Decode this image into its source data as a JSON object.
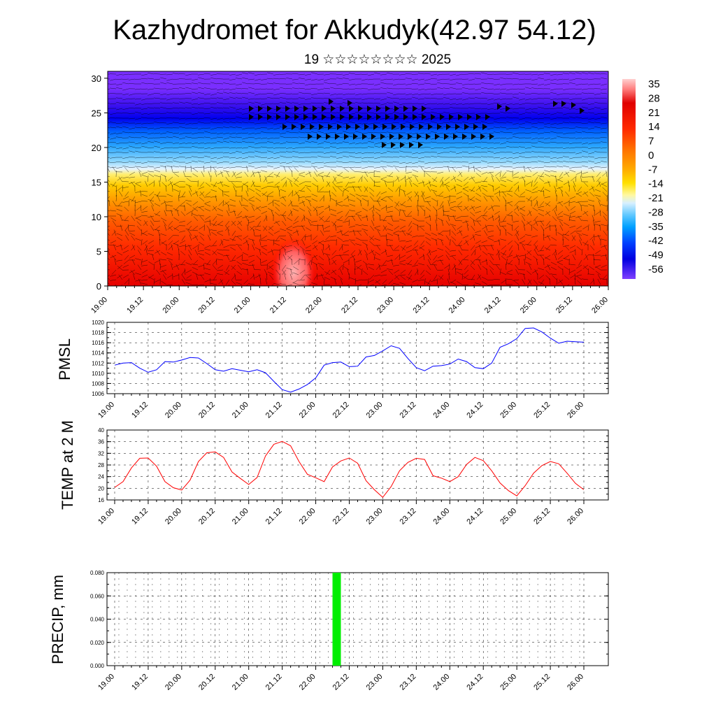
{
  "title": "Kazhydromet for Akkudyk(42.97 54.12)",
  "subtitle": "19 ☆☆☆☆☆☆☆☆ 2025",
  "colors": {
    "pmsl_line": "#0000ff",
    "temp_line": "#ff0000",
    "precip_bar": "#00ee00",
    "axis": "#000000",
    "grid": "#000000"
  },
  "chart_data": [
    {
      "type": "heatmap",
      "name": "upper-air-cross-section",
      "xlim": [
        0,
        7
      ],
      "ylim": [
        0,
        31
      ],
      "y_ticks": [
        0,
        5,
        10,
        15,
        20,
        25,
        30
      ],
      "x_tick_labels": [
        "19.00",
        "19.12",
        "20.00",
        "20.12",
        "21.00",
        "21.12",
        "22.00",
        "22.12",
        "23.00",
        "23.12",
        "24.00",
        "24.12",
        "25.00",
        "25.12",
        "26.00"
      ],
      "colorbar": {
        "labels": [
          "35",
          "28",
          "21",
          "14",
          "7",
          "0",
          "-7",
          "-14",
          "-21",
          "-28",
          "-35",
          "-42",
          "-49",
          "-56"
        ],
        "range": [
          -60,
          40
        ]
      },
      "overlay": "wind barbs"
    },
    {
      "type": "line",
      "name": "pmsl",
      "ylabel": "PMSL",
      "ylim": [
        1006,
        1020
      ],
      "y_ticks": [
        1006,
        1008,
        1010,
        1012,
        1014,
        1016,
        1018,
        1020
      ],
      "x_tick_labels": [
        "19.00",
        "19.12",
        "20.00",
        "20.12",
        "21.00",
        "21.12",
        "22.00",
        "22.12",
        "23.00",
        "23.12",
        "24.00",
        "24.12",
        "25.00",
        "25.12",
        "26.00"
      ],
      "x": [
        0,
        0.125,
        0.25,
        0.375,
        0.5,
        0.625,
        0.75,
        0.875,
        1,
        1.125,
        1.25,
        1.375,
        1.5,
        1.625,
        1.75,
        1.875,
        2,
        2.125,
        2.25,
        2.375,
        2.5,
        2.625,
        2.75,
        2.875,
        3,
        3.125,
        3.25,
        3.375,
        3.5,
        3.625,
        3.75,
        3.875,
        4,
        4.125,
        4.25,
        4.375,
        4.5,
        4.625,
        4.75,
        4.875,
        5,
        5.125,
        5.25,
        5.375,
        5.5,
        5.625,
        5.75,
        5.875,
        6,
        6.125,
        6.25,
        6.375,
        6.5,
        6.625,
        6.75,
        6.875,
        7
      ],
      "values": [
        1011.6,
        1012.0,
        1012.1,
        1011.0,
        1010.2,
        1010.7,
        1012.3,
        1012.2,
        1012.6,
        1013.1,
        1013.0,
        1011.9,
        1010.7,
        1010.4,
        1010.9,
        1010.6,
        1010.3,
        1010.7,
        1010.1,
        1008.4,
        1006.8,
        1006.3,
        1006.9,
        1007.8,
        1009.1,
        1011.6,
        1012.1,
        1012.2,
        1011.3,
        1011.4,
        1013.2,
        1013.5,
        1014.4,
        1015.4,
        1014.9,
        1012.9,
        1011.1,
        1010.5,
        1011.4,
        1011.5,
        1011.8,
        1012.8,
        1012.3,
        1011.1,
        1010.9,
        1012.0,
        1015.1,
        1015.8,
        1016.8,
        1018.8,
        1018.9,
        1018.1,
        1016.9,
        1015.9,
        1016.3,
        1016.2,
        1016.1
      ]
    },
    {
      "type": "line",
      "name": "temp2m",
      "ylabel": "TEMP at 2 M",
      "ylim": [
        16,
        40
      ],
      "y_ticks": [
        16,
        20,
        24,
        28,
        32,
        36,
        40
      ],
      "x_tick_labels": [
        "19.00",
        "19.12",
        "20.00",
        "20.12",
        "21.00",
        "21.12",
        "22.00",
        "22.12",
        "23.00",
        "23.12",
        "24.00",
        "24.12",
        "25.00",
        "25.12",
        "26.00"
      ],
      "x": [
        0,
        0.125,
        0.25,
        0.375,
        0.5,
        0.625,
        0.75,
        0.875,
        1,
        1.125,
        1.25,
        1.375,
        1.5,
        1.625,
        1.75,
        1.875,
        2,
        2.125,
        2.25,
        2.375,
        2.5,
        2.625,
        2.75,
        2.875,
        3,
        3.125,
        3.25,
        3.375,
        3.5,
        3.625,
        3.75,
        3.875,
        4,
        4.125,
        4.25,
        4.375,
        4.5,
        4.625,
        4.75,
        4.875,
        5,
        5.125,
        5.25,
        5.375,
        5.5,
        5.625,
        5.75,
        5.875,
        6,
        6.125,
        6.25,
        6.375,
        6.5,
        6.625,
        6.75,
        6.875,
        7
      ],
      "values": [
        20.3,
        22.3,
        27.0,
        30.3,
        30.4,
        27.6,
        22.3,
        20.2,
        19.4,
        22.8,
        29.2,
        32.2,
        32.5,
        30.6,
        25.6,
        23.4,
        21.3,
        23.7,
        31.1,
        35.1,
        36.1,
        34.6,
        29.2,
        24.8,
        23.6,
        22.3,
        27.3,
        29.4,
        30.4,
        28.6,
        22.6,
        19.5,
        16.9,
        20.6,
        26.0,
        28.9,
        30.3,
        29.9,
        24.3,
        23.5,
        22.3,
        24.0,
        28.2,
        30.6,
        29.5,
        26.0,
        21.8,
        19.2,
        17.4,
        20.9,
        25.2,
        27.8,
        29.2,
        28.4,
        25.2,
        21.7,
        19.5
      ]
    },
    {
      "type": "bar",
      "name": "precip",
      "ylabel": "PRECIP, mm",
      "ylim": [
        0,
        0.08
      ],
      "y_ticks": [
        "0.000",
        "0.020",
        "0.040",
        "0.060",
        "0.080"
      ],
      "x_tick_labels": [
        "19.00",
        "19.12",
        "20.00",
        "20.12",
        "21.00",
        "21.12",
        "22.00",
        "22.12",
        "23.00",
        "23.12",
        "24.00",
        "24.12",
        "25.00",
        "25.12",
        "26.00"
      ],
      "bars": [
        {
          "x": 3.25,
          "width": 0.125,
          "value": 0.08
        }
      ]
    }
  ]
}
